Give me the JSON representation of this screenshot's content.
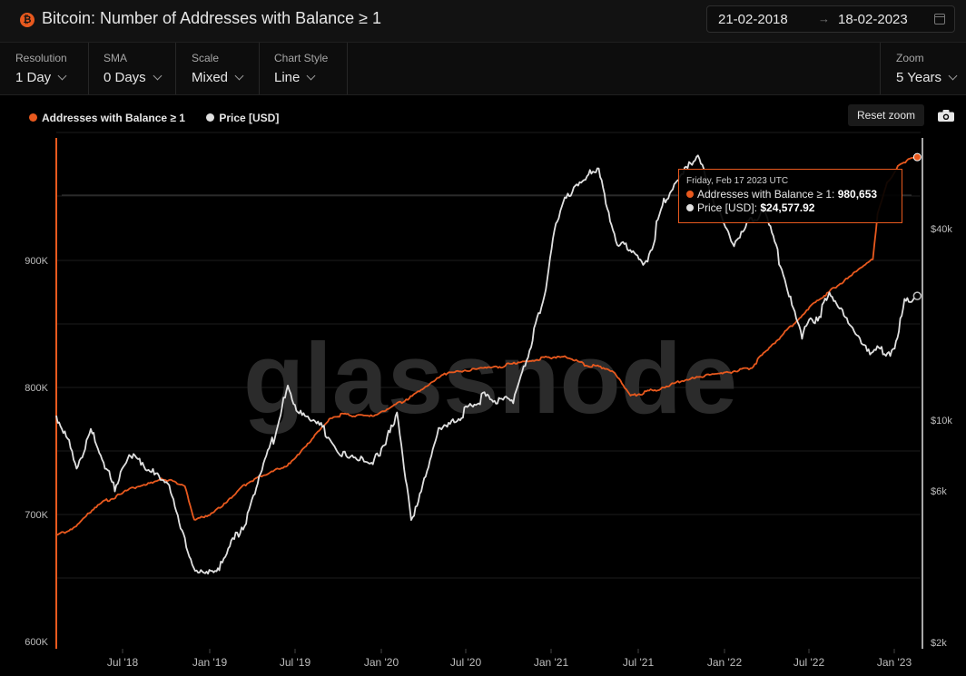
{
  "header": {
    "title": "Bitcoin: Number of Addresses with Balance ≥ 1",
    "logo_glyph": "₿",
    "date_from": "21-02-2018",
    "date_arrow": "→",
    "date_to": "18-02-2023"
  },
  "controls": {
    "resolution": {
      "label": "Resolution",
      "value": "1 Day"
    },
    "sma": {
      "label": "SMA",
      "value": "0 Days"
    },
    "scale": {
      "label": "Scale",
      "value": "Mixed"
    },
    "chart_style": {
      "label": "Chart Style",
      "value": "Line"
    },
    "zoom": {
      "label": "Zoom",
      "value": "5 Years"
    }
  },
  "toolbar": {
    "reset_zoom": "Reset zoom",
    "camera_icon": "camera-icon"
  },
  "legend": [
    {
      "label": "Addresses with Balance ≥ 1",
      "color": "#e8591e"
    },
    {
      "label": "Price [USD]",
      "color": "#e0e0e0"
    }
  ],
  "tooltip": {
    "date": "Friday, Feb 17 2023 UTC",
    "series1_label": "Addresses with Balance ≥ 1:",
    "series1_value": "980,653",
    "series2_label": "Price [USD]:",
    "series2_value": "$24,577.92"
  },
  "watermark": "glassnode",
  "colors": {
    "accent": "#e8591e",
    "price": "#e0e0e0",
    "background": "#000000"
  },
  "chart_data": {
    "type": "line",
    "x_ticks": [
      "Jul '18",
      "Jan '19",
      "Jul '19",
      "Jan '20",
      "Jul '20",
      "Jan '21",
      "Jul '21",
      "Jan '22",
      "Jul '22",
      "Jan '23"
    ],
    "y_left_ticks": [
      "600K",
      "700K",
      "800K",
      "900K"
    ],
    "y_left_range": [
      600000,
      1000000
    ],
    "y_right_ticks": [
      "$2k",
      "$6k",
      "$10k",
      "$40k"
    ],
    "y_right_scale": "log",
    "series": [
      {
        "name": "Addresses with Balance ≥ 1",
        "axis": "left",
        "color": "#e8591e",
        "points": [
          [
            "2018-02-21",
            683000
          ],
          [
            "2018-04-01",
            690000
          ],
          [
            "2018-06-01",
            710000
          ],
          [
            "2018-08-01",
            720000
          ],
          [
            "2018-10-01",
            728000
          ],
          [
            "2018-11-20",
            722000
          ],
          [
            "2018-12-10",
            695000
          ],
          [
            "2019-01-15",
            700000
          ],
          [
            "2019-04-01",
            725000
          ],
          [
            "2019-07-01",
            740000
          ],
          [
            "2019-10-01",
            778000
          ],
          [
            "2019-12-31",
            778000
          ],
          [
            "2020-03-15",
            793000
          ],
          [
            "2020-06-01",
            812000
          ],
          [
            "2020-09-01",
            815000
          ],
          [
            "2020-12-01",
            821000
          ],
          [
            "2021-02-01",
            825000
          ],
          [
            "2021-03-15",
            818000
          ],
          [
            "2021-05-15",
            813000
          ],
          [
            "2021-06-20",
            793000
          ],
          [
            "2021-09-01",
            800000
          ],
          [
            "2021-11-01",
            808000
          ],
          [
            "2022-01-01",
            810000
          ],
          [
            "2022-03-01",
            815000
          ],
          [
            "2022-05-01",
            838000
          ],
          [
            "2022-07-01",
            862000
          ],
          [
            "2022-09-01",
            880000
          ],
          [
            "2022-10-20",
            893000
          ],
          [
            "2022-11-15",
            900000
          ],
          [
            "2022-11-25",
            935000
          ],
          [
            "2022-12-15",
            960000
          ],
          [
            "2023-01-10",
            975000
          ],
          [
            "2023-02-17",
            980653
          ]
        ]
      },
      {
        "name": "Price [USD]",
        "axis": "right",
        "color": "#e0e0e0",
        "points": [
          [
            "2018-02-21",
            10500
          ],
          [
            "2018-03-20",
            8200
          ],
          [
            "2018-04-05",
            6800
          ],
          [
            "2018-05-05",
            9700
          ],
          [
            "2018-06-25",
            6100
          ],
          [
            "2018-07-25",
            8200
          ],
          [
            "2018-09-01",
            7000
          ],
          [
            "2018-10-15",
            6400
          ],
          [
            "2018-11-20",
            4300
          ],
          [
            "2018-12-15",
            3300
          ],
          [
            "2019-02-01",
            3500
          ],
          [
            "2019-04-05",
            5000
          ],
          [
            "2019-06-26",
            12500
          ],
          [
            "2019-07-20",
            10500
          ],
          [
            "2019-09-01",
            9800
          ],
          [
            "2019-10-15",
            8100
          ],
          [
            "2019-12-20",
            7200
          ],
          [
            "2020-02-12",
            10300
          ],
          [
            "2020-03-13",
            4900
          ],
          [
            "2020-05-10",
            9500
          ],
          [
            "2020-08-15",
            11800
          ],
          [
            "2020-10-15",
            11500
          ],
          [
            "2020-12-20",
            23500
          ],
          [
            "2021-01-10",
            40000
          ],
          [
            "2021-02-20",
            56000
          ],
          [
            "2021-04-14",
            63000
          ],
          [
            "2021-05-20",
            37000
          ],
          [
            "2021-07-20",
            30500
          ],
          [
            "2021-09-05",
            51000
          ],
          [
            "2021-11-10",
            67500
          ],
          [
            "2022-01-22",
            35000
          ],
          [
            "2022-03-28",
            47000
          ],
          [
            "2022-06-18",
            19000
          ],
          [
            "2022-08-15",
            24000
          ],
          [
            "2022-11-09",
            16500
          ],
          [
            "2022-12-31",
            16500
          ],
          [
            "2023-01-21",
            22800
          ],
          [
            "2023-02-17",
            24577.92
          ]
        ]
      }
    ]
  }
}
